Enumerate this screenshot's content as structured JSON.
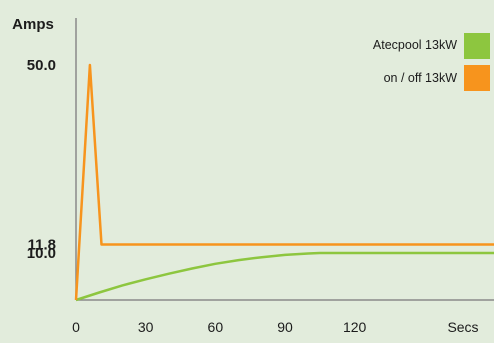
{
  "chart_data": {
    "type": "line",
    "ylabel": "Amps",
    "xlabel": "Secs",
    "x_ticks": [
      "0",
      "30",
      "60",
      "90",
      "120"
    ],
    "y_ticks": [
      "50.0",
      "11.8",
      "10.0"
    ],
    "y_tick_values": [
      50.0,
      11.8,
      10.0
    ],
    "xlim": [
      0,
      180
    ],
    "ylim": [
      0,
      60
    ],
    "legend_position": "top-right",
    "grid": false,
    "series": [
      {
        "name": "Atecpool 13kW",
        "color": "#8dc63f",
        "x": [
          0,
          10,
          20,
          30,
          40,
          50,
          60,
          70,
          80,
          90,
          100,
          105,
          110,
          180
        ],
        "y": [
          0,
          1.6,
          3.1,
          4.4,
          5.6,
          6.7,
          7.7,
          8.5,
          9.1,
          9.6,
          9.9,
          10.0,
          10.0,
          10.0
        ]
      },
      {
        "name": "on / off 13kW",
        "color": "#f7941d",
        "x": [
          0,
          6,
          11,
          180
        ],
        "y": [
          0,
          50.0,
          11.8,
          11.8
        ]
      }
    ]
  }
}
